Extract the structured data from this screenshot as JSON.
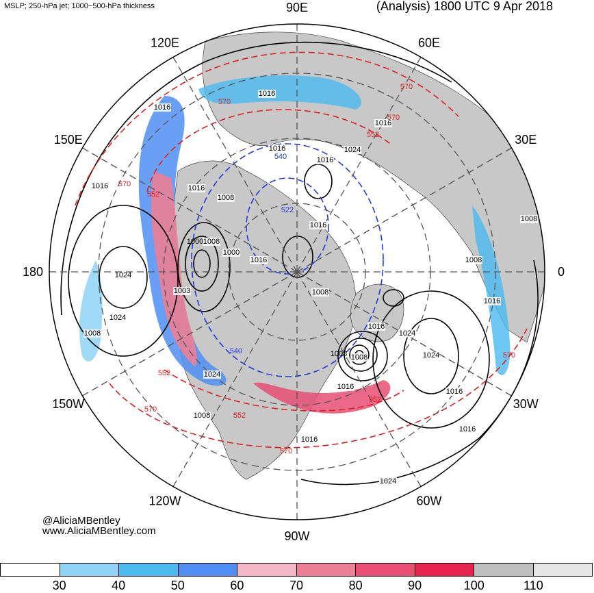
{
  "header": {
    "left": "MSLP; 250-hPa jet; 1000−500-hPa thickness",
    "right": "(Analysis) 1800 UTC 9 Apr 2018"
  },
  "map": {
    "projection": "north polar stereographic",
    "longitude_labels": [
      "90E",
      "60E",
      "30E",
      "0",
      "30W",
      "60W",
      "90W",
      "120W",
      "150W",
      "180",
      "150E",
      "120E"
    ],
    "fields": {
      "mslp": {
        "units": "hPa",
        "contour_color": "#000000"
      },
      "thickness": {
        "units": "dam",
        "contour_color_low": "#1f3bd9",
        "contour_color_high": "#e0201f",
        "style": "dashed"
      },
      "jet": {
        "units": "kt",
        "shaded": true
      }
    },
    "mslp_labels": [
      "1016",
      "1016",
      "1016",
      "1024",
      "1016",
      "1008",
      "1008",
      "1000",
      "1003",
      "1016",
      "1008",
      "1008",
      "1024",
      "1016",
      "1008",
      "1016",
      "1016",
      "1024",
      "1016",
      "1024",
      "1008",
      "1008",
      "1016",
      "1024",
      "1016",
      "1016",
      "1016",
      "1016",
      "1016",
      "1008"
    ],
    "thickness_labels": [
      "570",
      "570",
      "552",
      "570",
      "552",
      "540",
      "522",
      "540",
      "552",
      "570",
      "570",
      "552",
      "570",
      "570",
      "552"
    ],
    "highs": [
      {
        "name": "pacific-high",
        "center_label": "1024"
      },
      {
        "name": "atlantic-high",
        "center_label": "1024"
      }
    ],
    "lows": [
      {
        "name": "bering-low",
        "center_label": "1000"
      },
      {
        "name": "atlantic-deep-low",
        "center_label": "1008"
      }
    ]
  },
  "credits": {
    "handle": "@AliciaMBentley",
    "site": "www.AliciaMBentley.com"
  },
  "colorbar": {
    "units": "kt",
    "ticks": [
      "30",
      "40",
      "50",
      "60",
      "70",
      "80",
      "90",
      "100",
      "110"
    ],
    "colors": [
      "#ffffff",
      "#8ed3f5",
      "#4bbaf0",
      "#4f8ef2",
      "#f2b6c6",
      "#ec7e96",
      "#e84f73",
      "#e8224e",
      "#c0c0c0",
      "#e6e6e6"
    ]
  }
}
